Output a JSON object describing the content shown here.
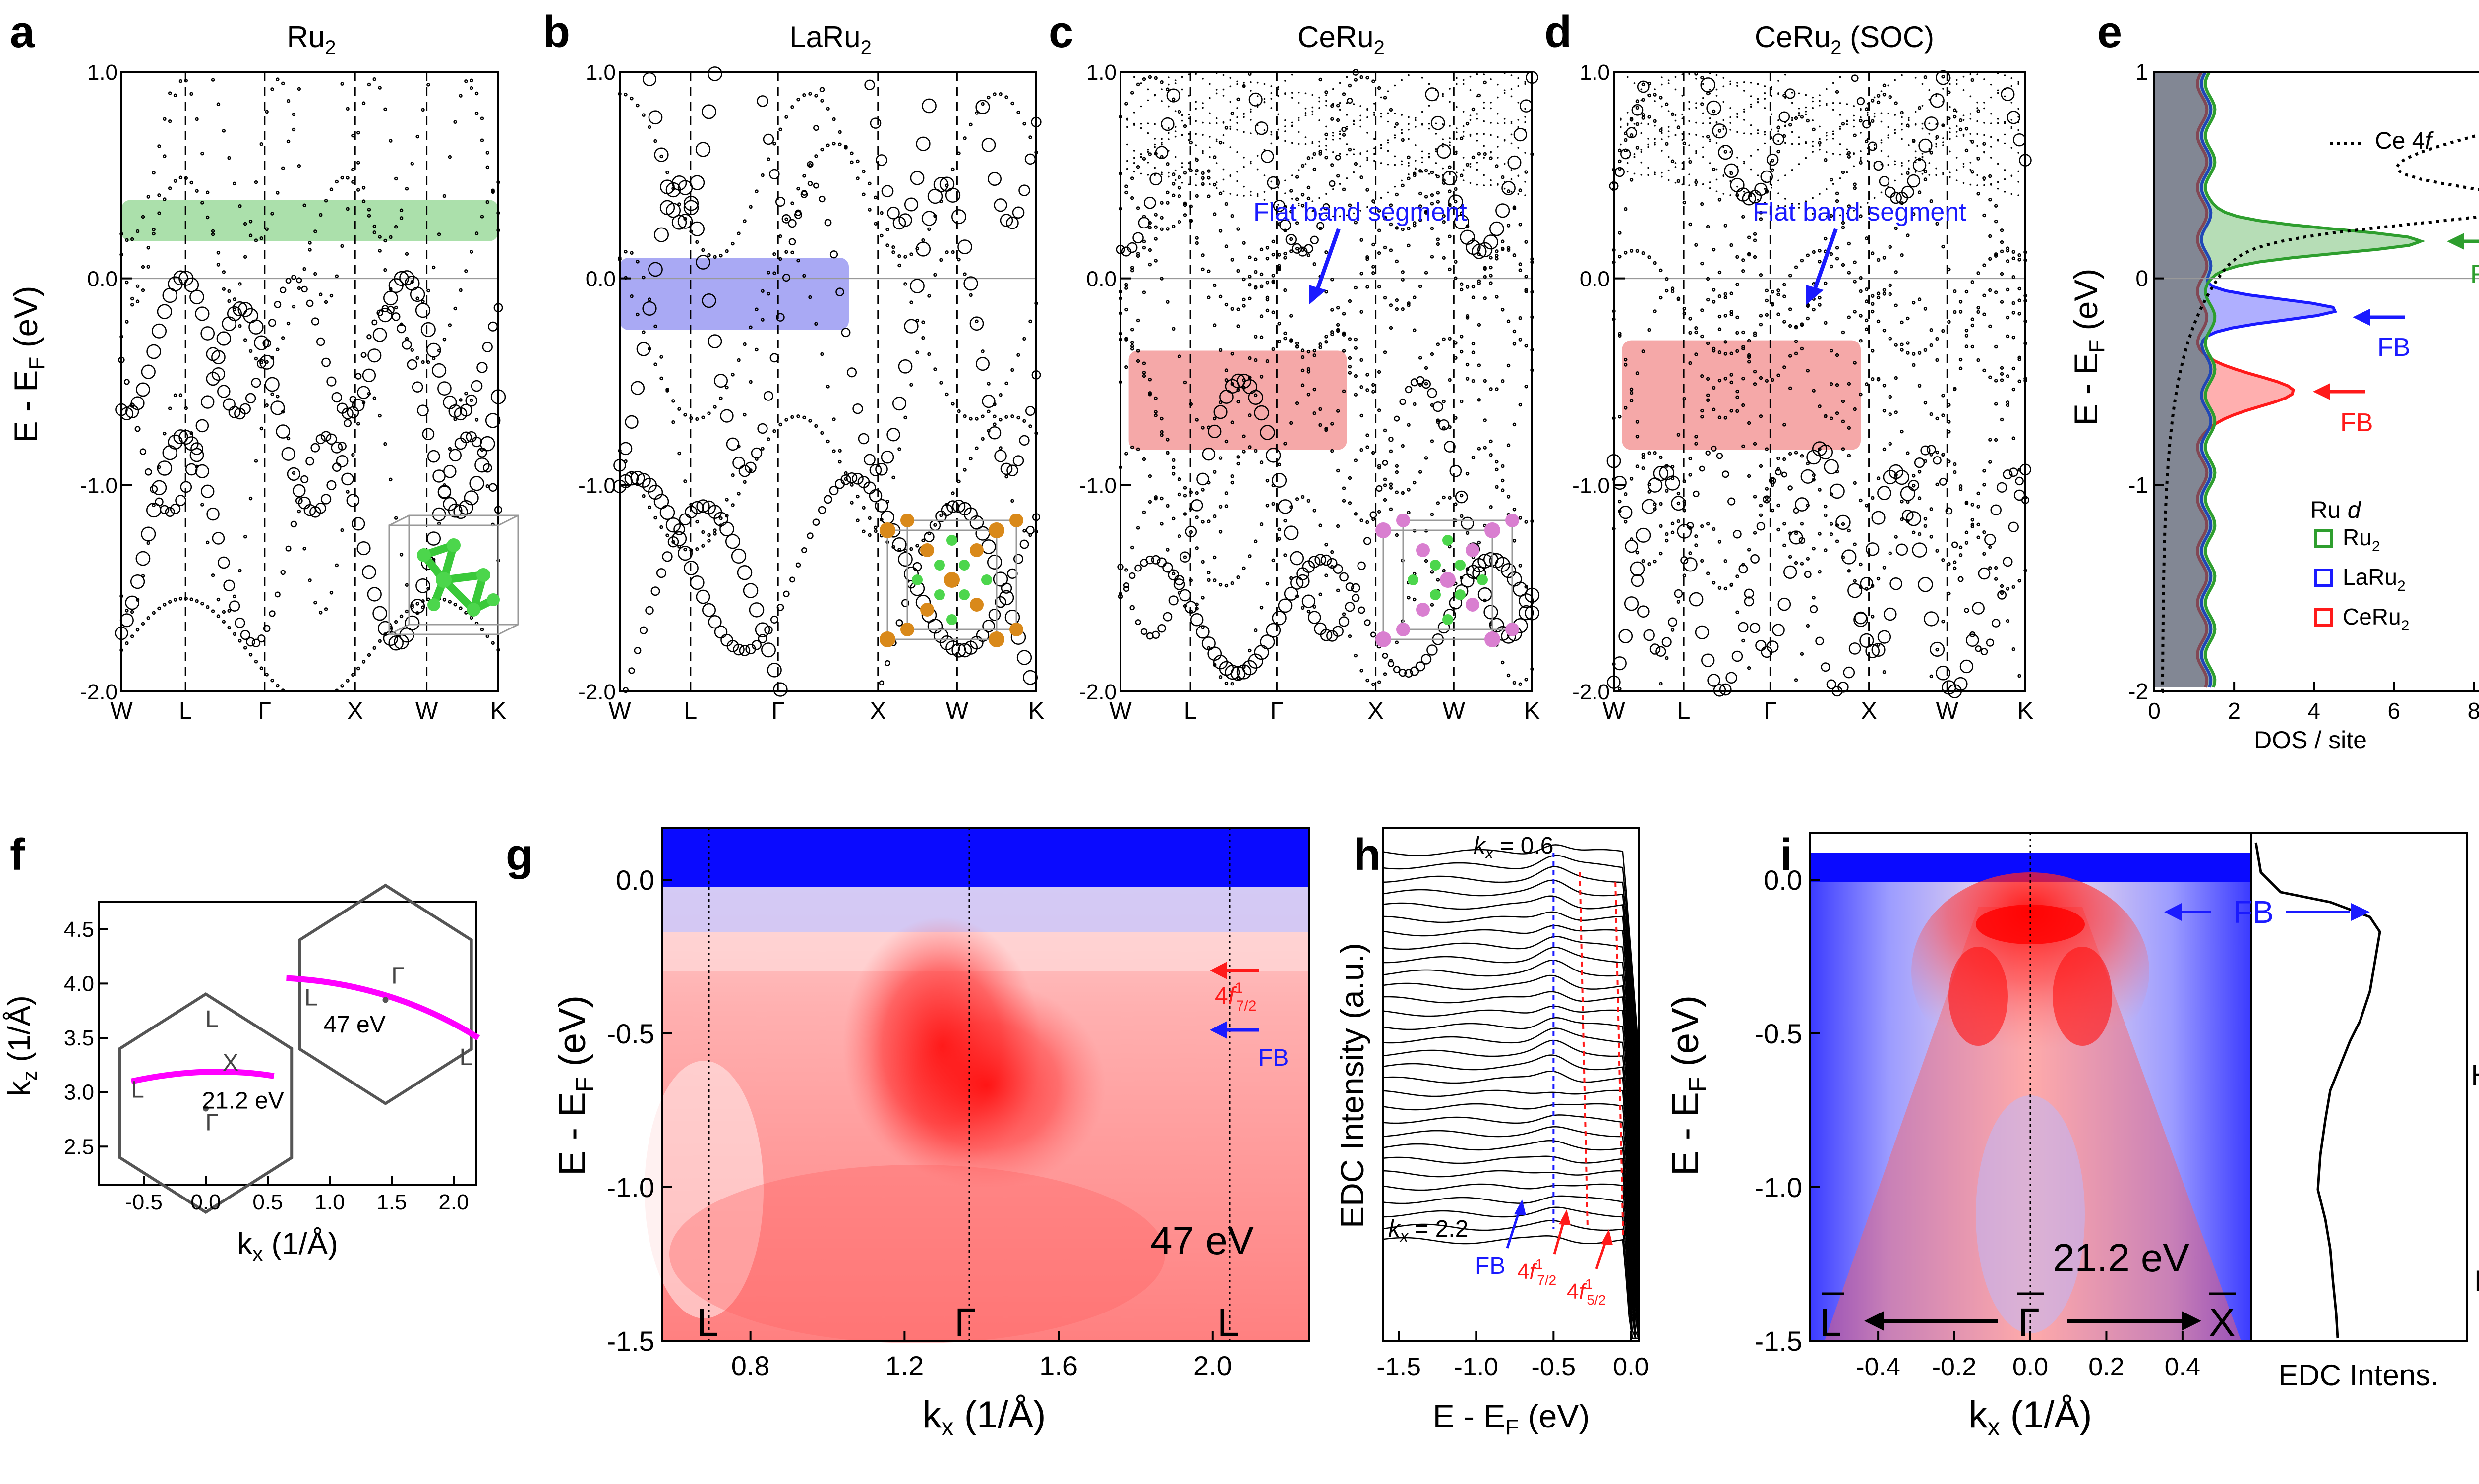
{
  "colors": {
    "green": "#2e9e2e",
    "blue": "#1a1aff",
    "red": "#ff1a1a",
    "magenta": "#ff00ff",
    "pink": "#f4a6a6",
    "gray": "#555555"
  },
  "panels": {
    "a": {
      "letter": "a",
      "title_main": "Ru",
      "title_sub": "2"
    },
    "b": {
      "letter": "b",
      "title_main": "LaRu",
      "title_sub": "2"
    },
    "c": {
      "letter": "c",
      "title_main": "CeRu",
      "title_sub": "2"
    },
    "d": {
      "letter": "d",
      "title_main": "CeRu",
      "title_sub": "2",
      "title_tail": " (SOC)"
    },
    "e": {
      "letter": "e"
    },
    "f": {
      "letter": "f"
    },
    "g": {
      "letter": "g"
    },
    "h": {
      "letter": "h"
    },
    "i": {
      "letter": "i"
    }
  },
  "band_axes": {
    "y_label_main": "E - E",
    "y_label_sub": "F",
    "y_label_unit": " (eV)",
    "y_ticks": [
      "1.0",
      "0.0",
      "-1.0",
      "-2.0"
    ],
    "k_ticks": [
      "W",
      "L",
      "Γ",
      "X",
      "W",
      "K"
    ]
  },
  "annotations": {
    "flat_band_segment": "Flat band segment"
  },
  "dos": {
    "x_label": "DOS / site",
    "x_ticks": [
      "0",
      "2",
      "4",
      "6",
      "8"
    ],
    "y_ticks": [
      "1",
      "0",
      "-1",
      "-2"
    ],
    "ce4f_label": "Ce 4",
    "ce4f_italic": "f",
    "fb": "FB",
    "legend_title": "Ru ",
    "legend_title_italic": "d",
    "legend": [
      {
        "main": "Ru",
        "sub": "2",
        "color": "#2e9e2e"
      },
      {
        "main": "LaRu",
        "sub": "2",
        "color": "#1a1aff"
      },
      {
        "main": "CeRu",
        "sub": "2",
        "color": "#ff1a1a"
      }
    ]
  },
  "bz": {
    "x_label_main": "k",
    "x_label_sub": "x",
    "x_label_unit": " (1/Å)",
    "y_label_main": "k",
    "y_label_sub": "z",
    "y_label_unit": " (1/Å)",
    "x_ticks": [
      "-0.5",
      "0.0",
      "0.5",
      "1.0",
      "1.5",
      "2.0"
    ],
    "y_ticks": [
      "4.5",
      "4.0",
      "3.5",
      "3.0",
      "2.5"
    ],
    "labels": {
      "L": "L",
      "X": "X",
      "G": "Γ"
    },
    "energy_47": "47 eV",
    "energy_21": "21.2 eV"
  },
  "arpes_g": {
    "y_ticks": [
      "0.0",
      "-0.5",
      "-1.0",
      "-1.5"
    ],
    "x_ticks": [
      "0.8",
      "1.2",
      "1.6",
      "2.0"
    ],
    "x_label_main": "k",
    "x_label_sub": "x",
    "x_label_unit": " (1/Å)",
    "y_label_main": "E - E",
    "y_label_sub": "F",
    "y_label_unit": " (eV)",
    "photon": "47 eV",
    "hs": [
      "L",
      "Γ",
      "L"
    ],
    "f72_main": "4",
    "f72_ital": "f",
    "f72_sup": "1",
    "f72_sub": "7/2",
    "fb": "FB"
  },
  "edc_h": {
    "y_label": "EDC Intensity (a.u.)",
    "x_label_main": "E - E",
    "x_label_sub": "F",
    "x_label_unit": " (eV)",
    "x_ticks": [
      "-1.5",
      "-1.0",
      "-0.5",
      "0.0"
    ],
    "kx_top_pre": "k",
    "kx_top_sub": "x",
    "kx_top_val": " = 0.6",
    "kx_bot_pre": "k",
    "kx_bot_sub": "x",
    "kx_bot_val": " = 2.2",
    "fb": "FB",
    "f72_main": "4",
    "f72_ital": "f",
    "f72_sup": "1",
    "f72_sub": "7/2",
    "f52_main": "4",
    "f52_ital": "f",
    "f52_sup": "1",
    "f52_sub": "5/2"
  },
  "arpes_i": {
    "y_ticks": [
      "0.0",
      "-0.5",
      "-1.0",
      "-1.5"
    ],
    "x_ticks": [
      "-0.4",
      "-0.2",
      "0.0",
      "0.2",
      "0.4"
    ],
    "x_label_main": "k",
    "x_label_sub": "x",
    "x_label_unit": " (1/Å)",
    "y_label_main": "E - E",
    "y_label_sub": "F",
    "y_label_unit": " (eV)",
    "photon": "21.2 eV",
    "hs": [
      "L",
      "Γ",
      "X"
    ],
    "fb": "FB",
    "edc_label": "EDC Intens.",
    "colorbar_high": "High",
    "colorbar_low": "Low"
  }
}
